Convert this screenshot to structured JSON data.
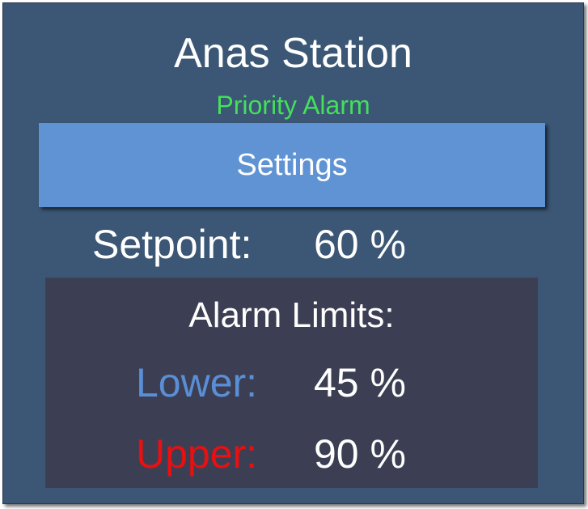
{
  "station": {
    "title": "Anas Station",
    "alarm_status": "Priority Alarm",
    "alarm_status_color": "#44e05a"
  },
  "settings_button": {
    "label": "Settings",
    "color": "#5f93d3"
  },
  "setpoint": {
    "label": "Setpoint:",
    "value": "60 %"
  },
  "alarm_limits": {
    "title": "Alarm Limits:",
    "lower": {
      "label": "Lower:",
      "value": "45 %",
      "color": "#5a8ed6"
    },
    "upper": {
      "label": "Upper:",
      "value": "90 %",
      "color": "#e81010"
    }
  }
}
